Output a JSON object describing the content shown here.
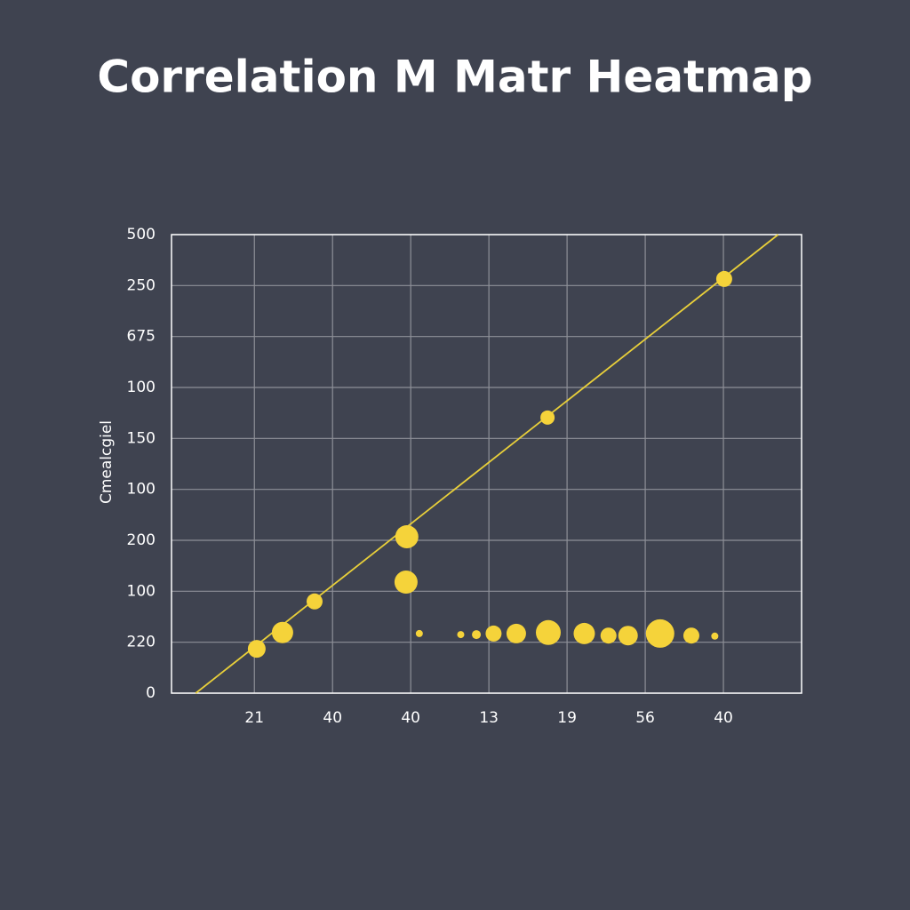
{
  "chart_data": {
    "type": "scatter",
    "title": "Correlation M Matr Heatmap",
    "y_label": "Cmealcgiel",
    "xlim": [
      -0.06,
      8
    ],
    "xticks": [
      {
        "value": 1,
        "label": "21"
      },
      {
        "value": 2,
        "label": "40"
      },
      {
        "value": 3,
        "label": "40"
      },
      {
        "value": 4,
        "label": "13"
      },
      {
        "value": 5,
        "label": "19"
      },
      {
        "value": 6,
        "label": "56"
      },
      {
        "value": 7,
        "label": "40"
      }
    ],
    "ylim": [
      0,
      9
    ],
    "yticks": [
      {
        "value": 0,
        "label": "0"
      },
      {
        "value": 1,
        "label": "220"
      },
      {
        "value": 2,
        "label": "100"
      },
      {
        "value": 3,
        "label": "200"
      },
      {
        "value": 4,
        "label": "100"
      },
      {
        "value": 5,
        "label": "150"
      },
      {
        "value": 6,
        "label": "100"
      },
      {
        "value": 7,
        "label": "675"
      },
      {
        "value": 8,
        "label": "250"
      },
      {
        "value": 9,
        "label": "500"
      }
    ],
    "grid": true,
    "series": [
      {
        "color": "#f5d33a",
        "x": [
          1.03,
          1.36,
          1.77,
          2.95,
          2.94,
          3.11,
          3.64,
          3.84,
          4.06,
          4.35,
          4.76,
          5.22,
          5.53,
          5.78,
          6.19,
          6.59,
          6.89,
          4.75,
          7.01
        ],
        "y": [
          0.87,
          1.19,
          1.8,
          3.07,
          2.18,
          1.17,
          1.15,
          1.15,
          1.17,
          1.17,
          1.19,
          1.17,
          1.13,
          1.13,
          1.17,
          1.13,
          1.12,
          5.41,
          8.13
        ],
        "sizes": [
          10,
          12,
          9,
          13,
          13,
          4,
          4,
          5,
          9,
          11,
          14,
          12,
          9,
          11,
          16,
          9,
          4,
          8,
          9
        ]
      }
    ],
    "trend_line": {
      "color": "#e8cf3a",
      "x": [
        0.25,
        7.7
      ],
      "y": [
        0,
        9
      ]
    }
  }
}
